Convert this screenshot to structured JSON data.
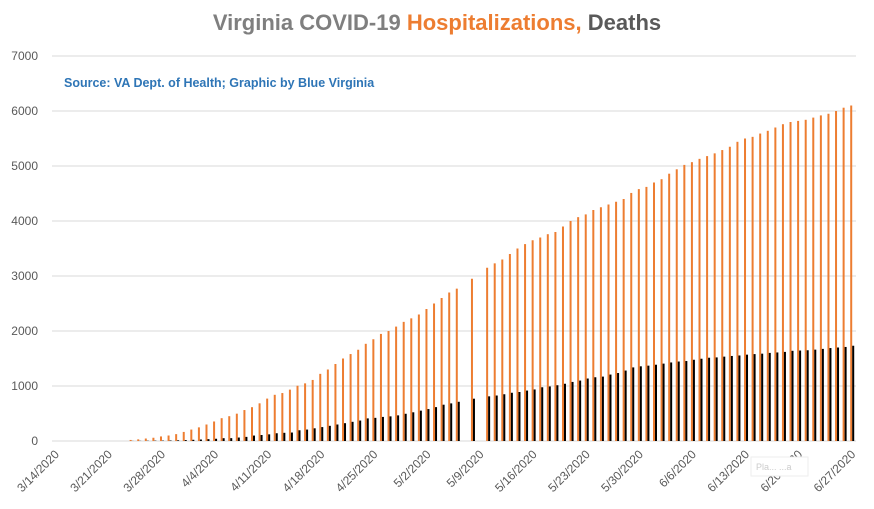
{
  "title": {
    "part1": "Virginia COVID-19 ",
    "part2": "Hospitalizations, ",
    "part3": "Deaths"
  },
  "colors": {
    "hospitalizations": "#ed7d31",
    "deaths": "#000000",
    "grid": "#d9d9d9",
    "subtitle": "#2e75b6"
  },
  "chart_data": {
    "type": "bar",
    "title": "Virginia COVID-19 Hospitalizations, Deaths",
    "subtitle": "Source: VA Dept. of Health; Graphic by Blue Virginia",
    "xlabel": "",
    "ylabel": "",
    "ylim": [
      0,
      7000
    ],
    "yticks": [
      "0",
      "1000",
      "2000",
      "3000",
      "4000",
      "5000",
      "6000",
      "7000"
    ],
    "grid": true,
    "x_start": "3/14/2020",
    "xticks": [
      "3/14/2020",
      "3/21/2020",
      "3/28/2020",
      "4/4/2020",
      "4/11/2020",
      "4/18/2020",
      "4/25/2020",
      "5/2/2020",
      "5/9/2020",
      "5/16/2020",
      "5/23/2020",
      "5/30/2020",
      "6/6/2020",
      "6/13/2020",
      "6/20/2020",
      "6/27/2020"
    ],
    "series": [
      {
        "name": "Hospitalizations",
        "values": [
          0,
          0,
          0,
          0,
          0,
          0,
          0,
          0,
          0,
          0,
          19,
          30,
          45,
          59,
          83,
          100,
          125,
          165,
          208,
          248,
          300,
          355,
          415,
          451,
          497,
          563,
          615,
          685,
          771,
          840,
          872,
          934,
          1005,
          1048,
          1110,
          1221,
          1300,
          1400,
          1500,
          1581,
          1659,
          1767,
          1850,
          1947,
          2000,
          2080,
          2166,
          2230,
          2300,
          2400,
          2500,
          2600,
          2700,
          2770,
          null,
          2950,
          null,
          3150,
          3230,
          3300,
          3400,
          3500,
          3580,
          3650,
          3700,
          3760,
          3800,
          3900,
          4000,
          4070,
          4120,
          4200,
          4250,
          4300,
          4350,
          4400,
          4510,
          4580,
          4620,
          4700,
          4760,
          4860,
          4940,
          5020,
          5070,
          5130,
          5180,
          5230,
          5290,
          5350,
          5440,
          5500,
          5530,
          5590,
          5640,
          5700,
          5760,
          5800,
          5820,
          5840,
          5880,
          5920,
          5950,
          6000,
          6060,
          6100
        ],
        "color": "#ed7d31"
      },
      {
        "name": "Deaths",
        "values": [
          0,
          0,
          0,
          0,
          0,
          0,
          0,
          0,
          0,
          0,
          2,
          3,
          5,
          6,
          7,
          9,
          13,
          17,
          22,
          27,
          34,
          41,
          51,
          52,
          63,
          75,
          99,
          109,
          121,
          141,
          149,
          154,
          195,
          208,
          231,
          253,
          276,
          300,
          324,
          349,
          372,
          411,
          421,
          438,
          448,
          466,
          495,
          522,
          552,
          581,
          616,
          660,
          684,
          713,
          null,
          769,
          null,
          812,
          827,
          850,
          877,
          891,
          917,
          937,
          977,
          992,
          1014,
          1041,
          1074,
          1099,
          1136,
          1159,
          1171,
          1208,
          1236,
          1281,
          1338,
          1358,
          1370,
          1387,
          1407,
          1428,
          1445,
          1454,
          1477,
          1496,
          1514,
          1520,
          1534,
          1546,
          1555,
          1570,
          1580,
          1588,
          1602,
          1610,
          1620,
          1640,
          1645,
          1650,
          1661,
          1675,
          1690,
          1700,
          1710,
          1732
        ],
        "color": "#000000"
      }
    ]
  },
  "watermark": "Pla... ...a"
}
